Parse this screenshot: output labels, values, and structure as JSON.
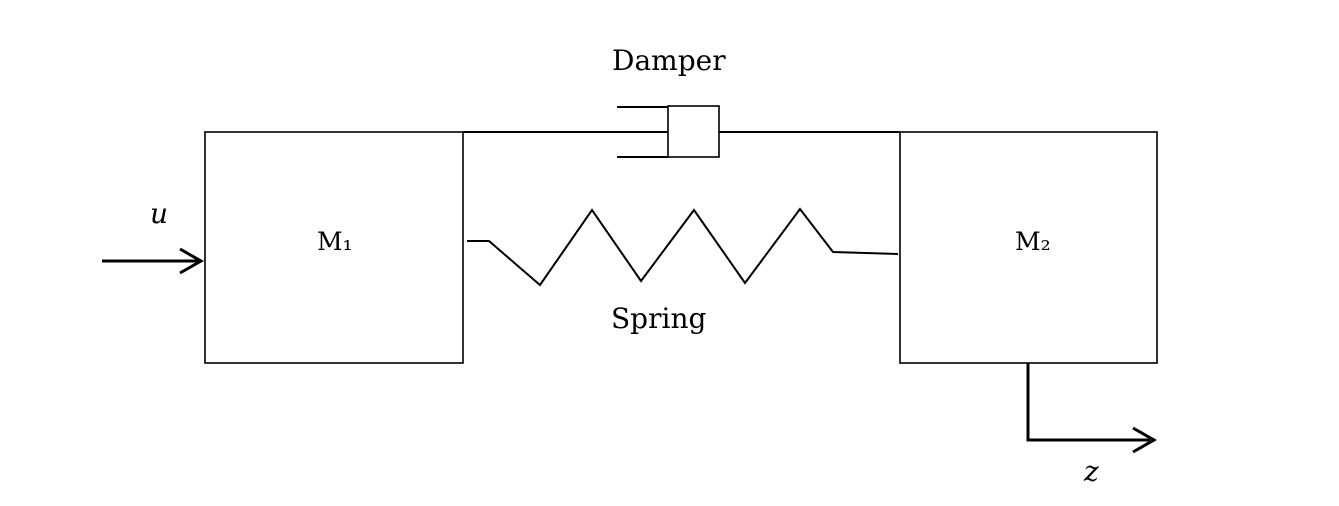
{
  "labels": {
    "damper": "Damper",
    "spring": "Spring",
    "mass1": "M₁",
    "mass2": "M₂",
    "input": "u",
    "output": "z"
  },
  "colors": {
    "stroke": "#000000",
    "background": "#ffffff"
  }
}
